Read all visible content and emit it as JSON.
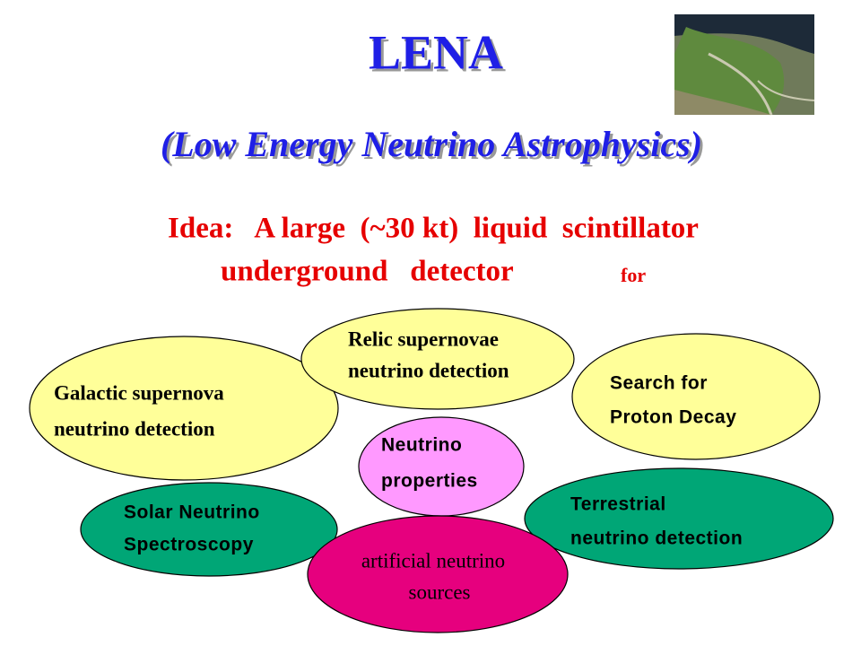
{
  "title": "LENA",
  "subtitle": "(Low Energy Neutrino Astrophysics)",
  "idea": {
    "lines": [
      "Idea:   A large  (~30 kt)  liquid  scintillator",
      "underground   detector"
    ],
    "suffix": "for"
  },
  "bubbles": [
    {
      "lines": [
        "Galactic supernova",
        "neutrino detection"
      ]
    },
    {
      "lines": [
        "Relic supernovae",
        "neutrino detection"
      ]
    },
    {
      "lines": [
        "Search for",
        "Proton Decay"
      ]
    },
    {
      "lines": [
        "Neutrino",
        "properties"
      ]
    },
    {
      "lines": [
        "Solar Neutrino",
        "Spectroscopy"
      ]
    },
    {
      "lines": [
        "Terrestrial",
        "neutrino detection"
      ]
    },
    {
      "lines": [
        "artificial neutrino",
        "sources"
      ]
    }
  ]
}
